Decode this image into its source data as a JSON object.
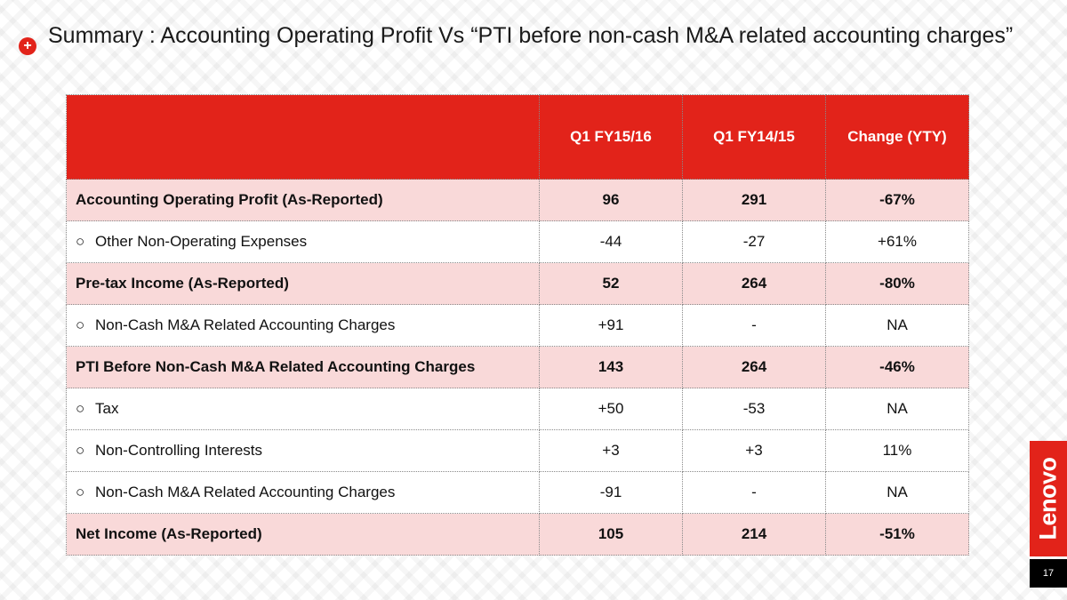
{
  "slide": {
    "bullet_glyph": "+",
    "title": "Summary : Accounting Operating Profit  Vs  “PTI before non-cash M&A related accounting charges”",
    "page_number": "17",
    "logo_text": "Lenovo",
    "accent_color": "#e2231a",
    "row_highlight_color": "#f9d9d9"
  },
  "table": {
    "headers": [
      "",
      "Q1 FY15/16",
      "Q1 FY14/15",
      "Change (YTY)"
    ],
    "sub_marker": "○",
    "rows": [
      {
        "label": "Accounting Operating Profit (As-Reported)",
        "q1_fy1516": "96",
        "q1_fy1415": "291",
        "change": "-67%"
      },
      {
        "label": "Other Non-Operating Expenses",
        "q1_fy1516": "-44",
        "q1_fy1415": "-27",
        "change": "+61%"
      },
      {
        "label": "Pre-tax Income (As-Reported)",
        "q1_fy1516": "52",
        "q1_fy1415": "264",
        "change": "-80%"
      },
      {
        "label": "Non-Cash M&A Related Accounting Charges",
        "q1_fy1516": "+91",
        "q1_fy1415": "-",
        "change": "NA"
      },
      {
        "label": "PTI Before Non-Cash M&A Related Accounting Charges",
        "q1_fy1516": "143",
        "q1_fy1415": "264",
        "change": "-46%"
      },
      {
        "label": "Tax",
        "q1_fy1516": "+50",
        "q1_fy1415": "-53",
        "change": "NA"
      },
      {
        "label": "Non-Controlling Interests",
        "q1_fy1516": "+3",
        "q1_fy1415": "+3",
        "change": "11%"
      },
      {
        "label": "Non-Cash M&A Related Accounting Charges",
        "q1_fy1516": "-91",
        "q1_fy1415": "-",
        "change": "NA"
      },
      {
        "label": "Net Income (As-Reported)",
        "q1_fy1516": "105",
        "q1_fy1415": "214",
        "change": "-51%"
      }
    ]
  }
}
